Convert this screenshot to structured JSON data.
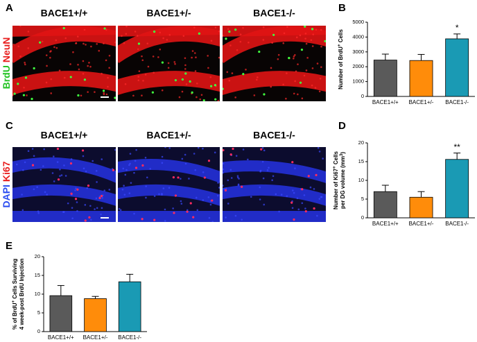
{
  "panels": [
    "A",
    "B",
    "C",
    "D",
    "E"
  ],
  "image_rows": [
    {
      "titles": [
        "BACE1+/+",
        "BACE1+/-",
        "BACE1-/-"
      ],
      "stains": [
        "BrdU",
        "NeuN"
      ]
    },
    {
      "titles": [
        "BACE1+/+",
        "BACE1+/-",
        "BACE1-/-"
      ],
      "stains": [
        "DAPI",
        "Ki67"
      ]
    }
  ],
  "chart_data": [
    {
      "type": "bar",
      "ylabel_lines": [
        [
          "Number of BrdU",
          "+",
          " Cells"
        ]
      ],
      "categories": [
        "BACE1+/+",
        "BACE1+/-",
        "BACE1-/-"
      ],
      "values": [
        2450,
        2420,
        3880
      ],
      "errors": [
        400,
        410,
        330
      ],
      "colors": [
        "#5a5a5a",
        "#ff8c0a",
        "#1a9ab4"
      ],
      "significance": [
        null,
        null,
        "*"
      ],
      "ylim": [
        0,
        5000
      ],
      "yticks": [
        0,
        1000,
        2000,
        3000,
        4000,
        5000
      ]
    },
    {
      "type": "bar",
      "ylabel_lines": [
        [
          "Number of Ki67",
          "+",
          " Cells"
        ],
        [
          "per DG volume (mm",
          "3",
          ")"
        ]
      ],
      "categories": [
        "BACE1+/+",
        "BACE1+/-",
        "BACE1-/-"
      ],
      "values": [
        7.0,
        5.5,
        15.6
      ],
      "errors": [
        1.7,
        1.5,
        1.7
      ],
      "colors": [
        "#5a5a5a",
        "#ff8c0a",
        "#1a9ab4"
      ],
      "significance": [
        null,
        null,
        "**"
      ],
      "ylim": [
        0,
        20
      ],
      "yticks": [
        0,
        5,
        10,
        15,
        20
      ]
    },
    {
      "type": "bar",
      "ylabel_lines": [
        [
          "% of BrdU",
          "+",
          " Cells Surviving"
        ],
        [
          "4 week-post BrdU Injection"
        ]
      ],
      "categories": [
        "BACE1+/+",
        "BACE1+/-",
        "BACE1-/-"
      ],
      "values": [
        9.6,
        8.8,
        13.3
      ],
      "errors": [
        2.7,
        0.6,
        2.0
      ],
      "colors": [
        "#5a5a5a",
        "#ff8c0a",
        "#1a9ab4"
      ],
      "significance": [
        null,
        null,
        null
      ],
      "ylim": [
        0,
        20
      ],
      "yticks": [
        0,
        5,
        10,
        15,
        20
      ]
    }
  ]
}
